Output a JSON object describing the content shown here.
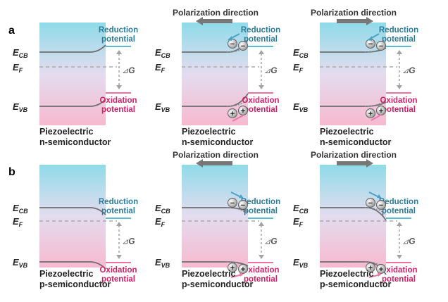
{
  "row_labels": [
    "a",
    "b"
  ],
  "polarization_label": "Polarization direction",
  "energy_labels": {
    "cb_main": "E",
    "cb_sub": "CB",
    "f_main": "E",
    "f_sub": "F",
    "vb_main": "E",
    "vb_sub": "VB"
  },
  "delta_g": {
    "symbol": "⊿",
    "letter": "G"
  },
  "reduction": [
    "Reduction",
    "potential"
  ],
  "oxidation": [
    "Oxidation",
    "potential"
  ],
  "electron_sign": "−",
  "hole_sign": "+",
  "captions": {
    "n": [
      "Piezoelectric",
      "n-semiconductor"
    ],
    "p": [
      "Piezoelectric",
      "p-semiconductor"
    ]
  },
  "colors": {
    "gradient_top": "#8fdbe9",
    "gradient_mid": "#e4dcef",
    "gradient_bottom": "#f7b9cf",
    "band": "#6e6e6e",
    "fermi": "#a9a9a9",
    "reduction": "#2b7d9a",
    "oxidation": "#d41f67",
    "reduction_line": "#3fb3c9",
    "oxidation_line": "#ec5b90",
    "arrow": "#777777",
    "electron_arrow": "#4aa3c7",
    "hole_arrow": "#e879a8"
  },
  "panels": [
    {
      "row": "a",
      "type": "n",
      "polarization": null
    },
    {
      "row": "a",
      "type": "n",
      "polarization": "left"
    },
    {
      "row": "a",
      "type": "n",
      "polarization": "right"
    },
    {
      "row": "b",
      "type": "p",
      "polarization": null
    },
    {
      "row": "b",
      "type": "p",
      "polarization": "left"
    },
    {
      "row": "b",
      "type": "p",
      "polarization": "right"
    }
  ]
}
